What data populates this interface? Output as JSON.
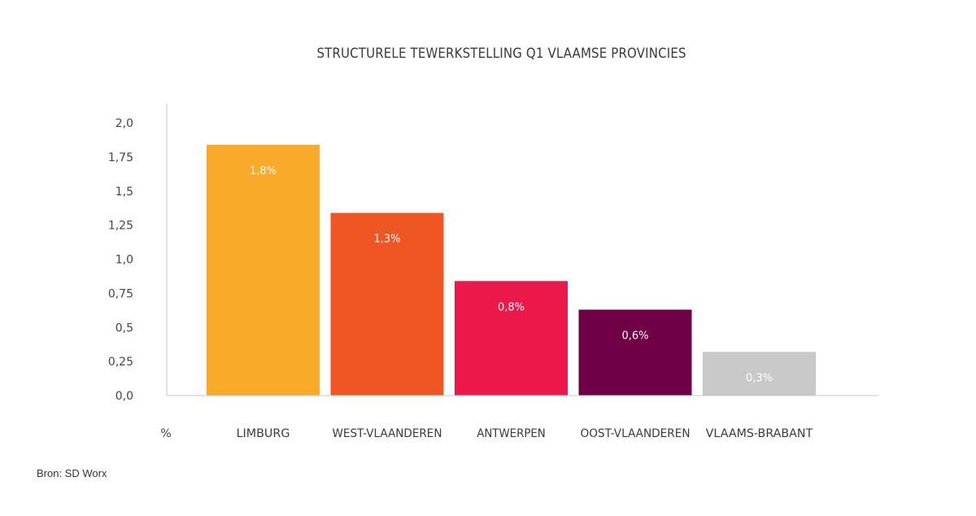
{
  "chart_data": {
    "type": "bar",
    "title": "STRUCTURELE TEWERKSTELLING Q1 VLAAMSE PROVINCIES",
    "xlabel": "",
    "ylabel": "%",
    "categories": [
      "LIMBURG",
      "WEST-VLAANDEREN",
      "ANTWERPEN",
      "OOST-VLAANDEREN",
      "VLAAMS-BRABANT"
    ],
    "values": [
      1.84,
      1.34,
      0.84,
      0.63,
      0.32
    ],
    "data_labels": [
      "1,8%",
      "1,3%",
      "0,8%",
      "0,6%",
      "0,3%"
    ],
    "colors": [
      "#f8aa28",
      "#f05623",
      "#ec1849",
      "#700045",
      "#c8c8c8"
    ],
    "ylim": [
      0,
      2.1
    ],
    "yticks": [
      0,
      0.25,
      0.5,
      0.75,
      1.0,
      1.25,
      1.5,
      1.75,
      2.0
    ],
    "ytick_labels": [
      "0,0",
      "0,25",
      "0,5",
      "0,75",
      "1,0",
      "1,25",
      "1,5",
      "1,75",
      "2,0"
    ],
    "grid": false,
    "legend": "none"
  },
  "source": "Bron: SD Worx"
}
